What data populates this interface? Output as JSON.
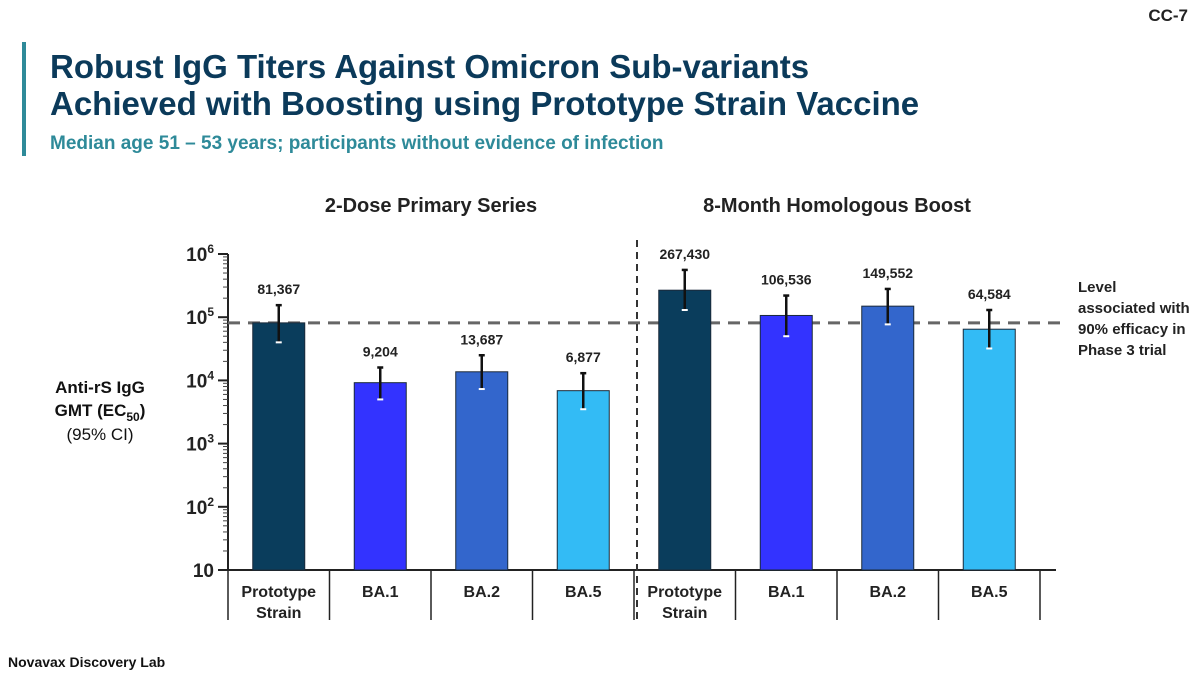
{
  "slide_id": "CC-7",
  "title_lines": [
    "Robust IgG Titers Against Omicron Sub-variants",
    "Achieved with Boosting using Prototype Strain Vaccine"
  ],
  "subtitle": "Median age 51 – 53 years; participants without evidence of infection",
  "footer": "Novavax Discovery Lab",
  "chart_data": {
    "type": "bar",
    "yscale": "log",
    "ylim": [
      10,
      1000000
    ],
    "yticks": [
      {
        "base": "10",
        "exp": "6",
        "v": 1000000
      },
      {
        "base": "10",
        "exp": "5",
        "v": 100000
      },
      {
        "base": "10",
        "exp": "4",
        "v": 10000
      },
      {
        "base": "10",
        "exp": "3",
        "v": 1000
      },
      {
        "base": "10",
        "exp": "2",
        "v": 100
      },
      {
        "base": "10",
        "exp": "",
        "v": 10
      }
    ],
    "ylabel": {
      "line1": "Anti-rS IgG",
      "line2a": "GMT (EC",
      "line2sub": "50",
      "line2b": ")",
      "line3": "(95% CI)"
    },
    "groups": [
      {
        "title": "2-Dose Primary Series",
        "bars": [
          {
            "label": [
              "Prototype",
              "Strain"
            ],
            "value": 81367,
            "value_label": "81,367",
            "ci": [
              40000,
              155000
            ],
            "color": "#0a3d5c"
          },
          {
            "label": [
              "BA.1"
            ],
            "value": 9204,
            "value_label": "9,204",
            "ci": [
              5000,
              16000
            ],
            "color": "#3333ff"
          },
          {
            "label": [
              "BA.2"
            ],
            "value": 13687,
            "value_label": "13,687",
            "ci": [
              7300,
              25000
            ],
            "color": "#3366cc"
          },
          {
            "label": [
              "BA.5"
            ],
            "value": 6877,
            "value_label": "6,877",
            "ci": [
              3500,
              13000
            ],
            "color": "#33bbf5"
          }
        ]
      },
      {
        "title": "8-Month Homologous Boost",
        "bars": [
          {
            "label": [
              "Prototype",
              "Strain"
            ],
            "value": 267430,
            "value_label": "267,430",
            "ci": [
              130000,
              560000
            ],
            "color": "#0a3d5c"
          },
          {
            "label": [
              "BA.1"
            ],
            "value": 106536,
            "value_label": "106,536",
            "ci": [
              50000,
              220000
            ],
            "color": "#3333ff"
          },
          {
            "label": [
              "BA.2"
            ],
            "value": 149552,
            "value_label": "149,552",
            "ci": [
              77000,
              280000
            ],
            "color": "#3366cc"
          },
          {
            "label": [
              "BA.5"
            ],
            "value": 64584,
            "value_label": "64,584",
            "ci": [
              32000,
              130000
            ],
            "color": "#33bbf5"
          }
        ]
      }
    ],
    "reference_line": {
      "value": 81367,
      "label": [
        "Level",
        "associated with",
        "90% efficacy in",
        "Phase 3 trial"
      ]
    }
  }
}
